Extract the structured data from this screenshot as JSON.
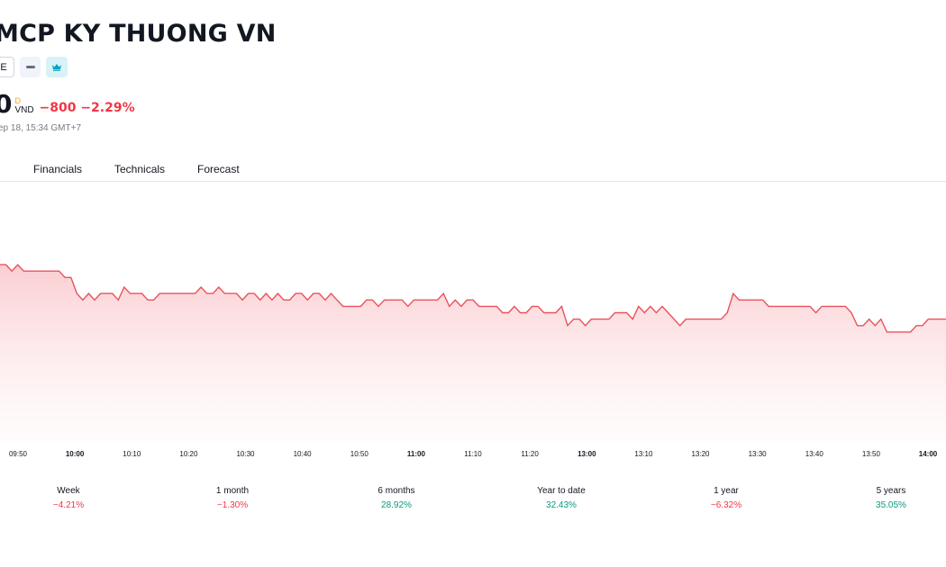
{
  "header": {
    "title": "MCP KY THUONG VN",
    "exchange_badge": "E",
    "icons": [
      "dash-icon",
      "crown-icon"
    ]
  },
  "quote": {
    "price": "0",
    "currency_superscript": "D",
    "currency": "VND",
    "change": "−800 −2.29%",
    "timestamp": "ep 18, 15:34 GMT+7"
  },
  "tabs": [
    "Financials",
    "Technicals",
    "Forecast"
  ],
  "colors": {
    "negative": "#f23645",
    "positive": "#089981",
    "line": "#e8535c"
  },
  "chart_data": {
    "type": "area",
    "x_ticks": [
      {
        "label": "09:50",
        "bold": false
      },
      {
        "label": "10:00",
        "bold": true
      },
      {
        "label": "10:10",
        "bold": false
      },
      {
        "label": "10:20",
        "bold": false
      },
      {
        "label": "10:30",
        "bold": false
      },
      {
        "label": "10:40",
        "bold": false
      },
      {
        "label": "10:50",
        "bold": false
      },
      {
        "label": "11:00",
        "bold": true
      },
      {
        "label": "11:10",
        "bold": false
      },
      {
        "label": "11:20",
        "bold": false
      },
      {
        "label": "13:00",
        "bold": true
      },
      {
        "label": "13:10",
        "bold": false
      },
      {
        "label": "13:20",
        "bold": false
      },
      {
        "label": "13:30",
        "bold": false
      },
      {
        "label": "13:40",
        "bold": false
      },
      {
        "label": "13:50",
        "bold": false
      },
      {
        "label": "14:00",
        "bold": true
      }
    ],
    "ylim": [
      34300,
      35900
    ],
    "y": [
      35400,
      35400,
      35360,
      35400,
      35360,
      35360,
      35360,
      35360,
      35360,
      35360,
      35360,
      35320,
      35320,
      35220,
      35180,
      35220,
      35180,
      35220,
      35220,
      35220,
      35180,
      35260,
      35220,
      35220,
      35220,
      35180,
      35180,
      35220,
      35220,
      35220,
      35220,
      35220,
      35220,
      35220,
      35260,
      35220,
      35220,
      35260,
      35220,
      35220,
      35220,
      35180,
      35220,
      35220,
      35180,
      35220,
      35180,
      35220,
      35180,
      35180,
      35220,
      35220,
      35180,
      35220,
      35220,
      35180,
      35220,
      35180,
      35140,
      35140,
      35140,
      35140,
      35180,
      35180,
      35140,
      35180,
      35180,
      35180,
      35180,
      35140,
      35180,
      35180,
      35180,
      35180,
      35180,
      35220,
      35140,
      35180,
      35140,
      35180,
      35180,
      35140,
      35140,
      35140,
      35140,
      35100,
      35100,
      35140,
      35100,
      35100,
      35140,
      35140,
      35100,
      35100,
      35100,
      35140,
      35020,
      35060,
      35060,
      35020,
      35060,
      35060,
      35060,
      35060,
      35100,
      35100,
      35100,
      35060,
      35140,
      35100,
      35140,
      35100,
      35140,
      35100,
      35060,
      35020,
      35060,
      35060,
      35060,
      35060,
      35060,
      35060,
      35060,
      35100,
      35220,
      35180,
      35180,
      35180,
      35180,
      35180,
      35140,
      35140,
      35140,
      35140,
      35140,
      35140,
      35140,
      35140,
      35100,
      35140,
      35140,
      35140,
      35140,
      35140,
      35100,
      35020,
      35020,
      35060,
      35020,
      35060,
      34980,
      34980,
      34980,
      34980,
      34980,
      35020,
      35020,
      35060,
      35060,
      35060,
      35060
    ]
  },
  "performance": [
    {
      "label": "Week",
      "value": "−4.21%",
      "sign": "neg"
    },
    {
      "label": "1 month",
      "value": "−1.30%",
      "sign": "neg"
    },
    {
      "label": "6 months",
      "value": "28.92%",
      "sign": "pos"
    },
    {
      "label": "Year to date",
      "value": "32.43%",
      "sign": "pos"
    },
    {
      "label": "1 year",
      "value": "−6.32%",
      "sign": "neg"
    },
    {
      "label": "5 years",
      "value": "35.05%",
      "sign": "pos"
    }
  ]
}
